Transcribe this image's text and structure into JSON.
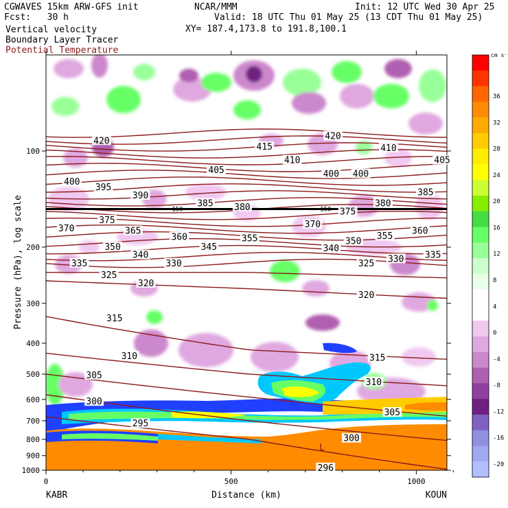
{
  "header": {
    "left_line1": "CGWAVES 15km ARW-GFS init",
    "left_line2": "Fcst:   30 h",
    "center_line1": "NCAR/MMM",
    "right_line1": "Init: 12 UTC Wed 30 Apr 25",
    "valid_line": "Valid: 18 UTC Thu 01 May 25 (13 CDT Thu 01 May 25)",
    "xy_line": "XY= 187.4,173.8 to 191.8,100.1"
  },
  "legend": {
    "vertical_velocity": "Vertical velocity",
    "boundary_layer": "Boundary Layer Tracer",
    "potential_temperature": "Potential Temperature",
    "potential_temperature_color": "#8b1a1a"
  },
  "chart_data": {
    "type": "heatmap",
    "ylabel": "Pressure (hPa), log scale",
    "xlabel": "Distance (km)",
    "y_scale": "log",
    "ylim": [
      1000,
      50
    ],
    "xlim": [
      0,
      1100
    ],
    "y_ticks": [
      "100",
      "200",
      "300",
      "400",
      "500",
      "600",
      "700",
      "800",
      "900",
      "1000"
    ],
    "x_ticks": [
      "0",
      "500",
      "1000"
    ],
    "x_endpoints": {
      "left": "KABR",
      "right": "KOUN"
    },
    "colorbar": {
      "unit": "cm s⁻¹",
      "labels": [
        "36",
        "32",
        "28",
        "24",
        "20",
        "16",
        "12",
        "8",
        "4",
        "0",
        "-4",
        "-8",
        "-12",
        "-16",
        "-20"
      ],
      "colors": [
        "#ff0000",
        "#ff3300",
        "#ff6600",
        "#ff8c00",
        "#ffaa00",
        "#ffcc00",
        "#ffee00",
        "#ffff00",
        "#ccff33",
        "#88ee00",
        "#44dd44",
        "#66ff66",
        "#99ff99",
        "#ccffcc",
        "#e8ffe8",
        "#ffffff",
        "#ffffff",
        "#f0c8f0",
        "#e0a8e0",
        "#cc88cc",
        "#b060b0",
        "#9040a0",
        "#702080",
        "#8060c0",
        "#9090e0",
        "#a0a8f0",
        "#b0c0ff"
      ]
    },
    "theta_labels": [
      {
        "v": "420",
        "x": 150,
        "p": 93
      },
      {
        "v": "415",
        "x": 590,
        "p": 97
      },
      {
        "v": "420",
        "x": 775,
        "p": 90
      },
      {
        "v": "410",
        "x": 665,
        "p": 107
      },
      {
        "v": "410",
        "x": 925,
        "p": 98
      },
      {
        "v": "405",
        "x": 460,
        "p": 115
      },
      {
        "v": "405",
        "x": 1070,
        "p": 107
      },
      {
        "v": "400",
        "x": 70,
        "p": 125
      },
      {
        "v": "400",
        "x": 770,
        "p": 118
      },
      {
        "v": "400",
        "x": 850,
        "p": 118
      },
      {
        "v": "395",
        "x": 155,
        "p": 130
      },
      {
        "v": "390",
        "x": 255,
        "p": 138
      },
      {
        "v": "385",
        "x": 430,
        "p": 146
      },
      {
        "v": "385",
        "x": 1025,
        "p": 135
      },
      {
        "v": "380",
        "x": 530,
        "p": 150
      },
      {
        "v": "380",
        "x": 910,
        "p": 146
      },
      {
        "v": "375",
        "x": 165,
        "p": 165
      },
      {
        "v": "375",
        "x": 815,
        "p": 155
      },
      {
        "v": "370",
        "x": 55,
        "p": 175
      },
      {
        "v": "370",
        "x": 720,
        "p": 170
      },
      {
        "v": "365",
        "x": 235,
        "p": 178
      },
      {
        "v": "360",
        "x": 360,
        "p": 186
      },
      {
        "v": "360",
        "x": 1010,
        "p": 178
      },
      {
        "v": "355",
        "x": 550,
        "p": 188
      },
      {
        "v": "355",
        "x": 915,
        "p": 185
      },
      {
        "v": "350",
        "x": 180,
        "p": 200
      },
      {
        "v": "350",
        "x": 830,
        "p": 192
      },
      {
        "v": "345",
        "x": 440,
        "p": 200
      },
      {
        "v": "340",
        "x": 255,
        "p": 212
      },
      {
        "v": "340",
        "x": 770,
        "p": 202
      },
      {
        "v": "335",
        "x": 90,
        "p": 225
      },
      {
        "v": "335",
        "x": 1045,
        "p": 212
      },
      {
        "v": "330",
        "x": 345,
        "p": 225
      },
      {
        "v": "330",
        "x": 945,
        "p": 218
      },
      {
        "v": "325",
        "x": 170,
        "p": 245
      },
      {
        "v": "325",
        "x": 865,
        "p": 225
      },
      {
        "v": "320",
        "x": 270,
        "p": 260
      },
      {
        "v": "320",
        "x": 865,
        "p": 283
      },
      {
        "v": "315",
        "x": 185,
        "p": 335
      },
      {
        "v": "315",
        "x": 895,
        "p": 445
      },
      {
        "v": "310",
        "x": 225,
        "p": 440
      },
      {
        "v": "310",
        "x": 885,
        "p": 530
      },
      {
        "v": "305",
        "x": 130,
        "p": 505
      },
      {
        "v": "305",
        "x": 935,
        "p": 660
      },
      {
        "v": "300",
        "x": 130,
        "p": 610
      },
      {
        "v": "300",
        "x": 825,
        "p": 795
      },
      {
        "v": "295",
        "x": 255,
        "p": 715
      },
      {
        "v": "296",
        "x": 755,
        "p": 985
      }
    ],
    "tropopause_labels": [
      {
        "v": "150",
        "x": 355,
        "p": 152
      },
      {
        "v": "150",
        "x": 755,
        "p": 152
      }
    ],
    "low_marker": {
      "v": "L",
      "x": 745,
      "p": 850
    }
  }
}
